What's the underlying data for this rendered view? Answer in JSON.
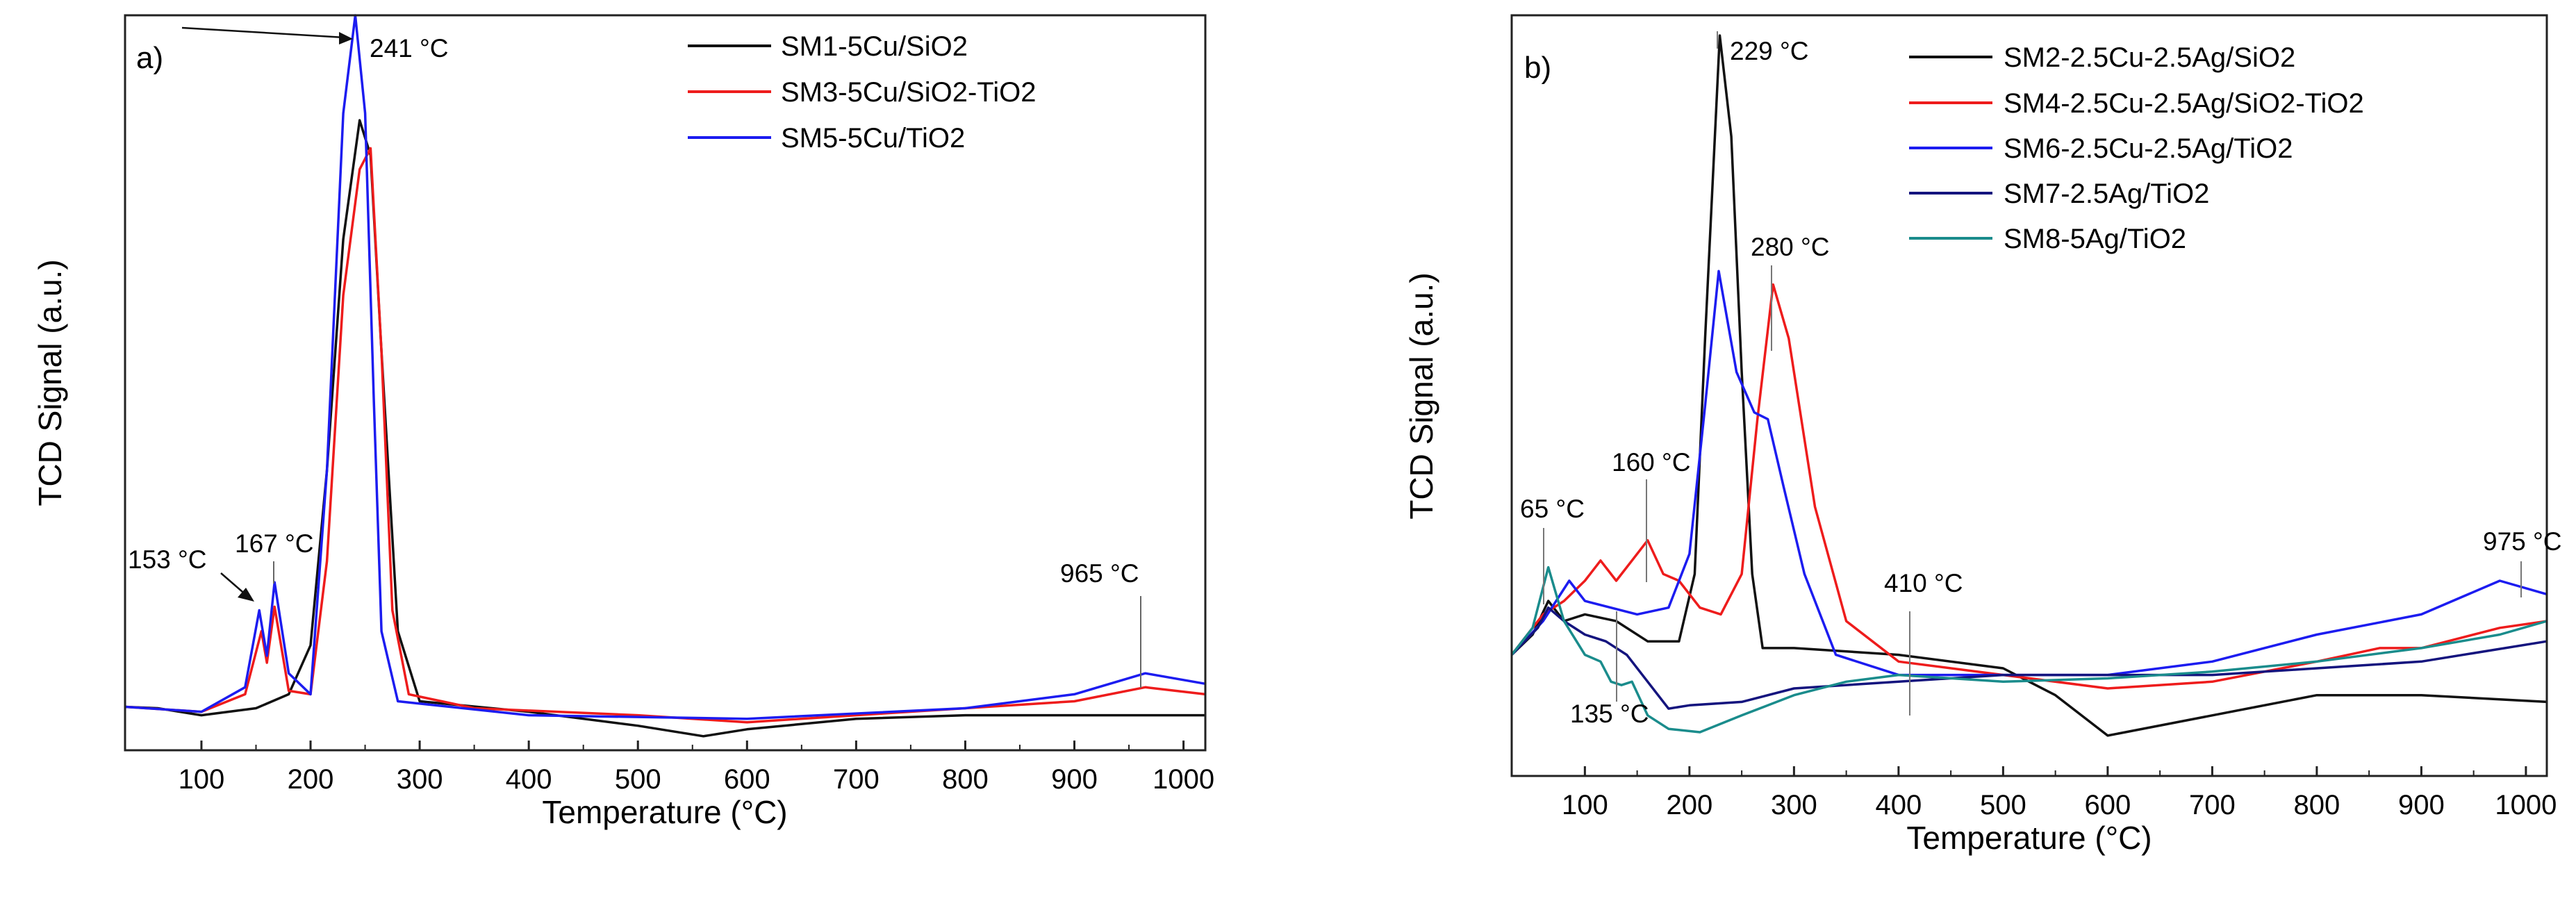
{
  "colors": {
    "black": "#111111",
    "red": "#ee1c1c",
    "blue": "#1c1cf0",
    "navy": "#14147e",
    "teal": "#1a8c8c"
  },
  "chart_data": [
    {
      "type": "line",
      "panel_label": "a)",
      "xlabel": "Temperature (°C)",
      "ylabel": "TCD Signal (a.u.)",
      "xlim": [
        30,
        1020
      ],
      "ylim": [
        -0.5,
        10
      ],
      "x_ticks": [
        100,
        200,
        300,
        400,
        500,
        600,
        700,
        800,
        900,
        1000
      ],
      "x_tick_labels": [
        "100",
        "200",
        "300",
        "400",
        "500",
        "600",
        "700",
        "800",
        "900",
        "1000"
      ],
      "legend_position": "top-right",
      "series": [
        {
          "name": "SM1-5Cu/SiO2",
          "color": "#111111",
          "points": [
            [
              30,
              0.12
            ],
            [
              60,
              0.1
            ],
            [
              100,
              0.0
            ],
            [
              150,
              0.1
            ],
            [
              180,
              0.3
            ],
            [
              200,
              1.0
            ],
            [
              215,
              3.5
            ],
            [
              230,
              6.8
            ],
            [
              245,
              8.5
            ],
            [
              255,
              8.0
            ],
            [
              265,
              5.2
            ],
            [
              280,
              1.2
            ],
            [
              300,
              0.2
            ],
            [
              400,
              0.05
            ],
            [
              500,
              -0.15
            ],
            [
              560,
              -0.3
            ],
            [
              600,
              -0.2
            ],
            [
              700,
              -0.05
            ],
            [
              800,
              0.0
            ],
            [
              900,
              0.0
            ],
            [
              1020,
              0.0
            ]
          ]
        },
        {
          "name": "SM3-5Cu/SiO2-TiO2",
          "color": "#ee1c1c",
          "points": [
            [
              30,
              0.12
            ],
            [
              100,
              0.05
            ],
            [
              140,
              0.3
            ],
            [
              155,
              1.2
            ],
            [
              160,
              0.75
            ],
            [
              167,
              1.55
            ],
            [
              180,
              0.35
            ],
            [
              200,
              0.3
            ],
            [
              215,
              2.2
            ],
            [
              230,
              6.0
            ],
            [
              245,
              7.8
            ],
            [
              255,
              8.1
            ],
            [
              265,
              5.2
            ],
            [
              275,
              1.5
            ],
            [
              290,
              0.3
            ],
            [
              350,
              0.1
            ],
            [
              500,
              0.0
            ],
            [
              600,
              -0.1
            ],
            [
              700,
              0.0
            ],
            [
              800,
              0.1
            ],
            [
              900,
              0.2
            ],
            [
              965,
              0.4
            ],
            [
              1020,
              0.3
            ]
          ]
        },
        {
          "name": "SM5-5Cu/TiO2",
          "color": "#1c1cf0",
          "points": [
            [
              30,
              0.12
            ],
            [
              100,
              0.05
            ],
            [
              140,
              0.4
            ],
            [
              153,
              1.5
            ],
            [
              160,
              0.85
            ],
            [
              167,
              1.9
            ],
            [
              180,
              0.6
            ],
            [
              200,
              0.3
            ],
            [
              215,
              3.5
            ],
            [
              230,
              8.6
            ],
            [
              241,
              10.0
            ],
            [
              250,
              8.6
            ],
            [
              258,
              4.5
            ],
            [
              265,
              1.2
            ],
            [
              280,
              0.2
            ],
            [
              400,
              0.0
            ],
            [
              600,
              -0.05
            ],
            [
              800,
              0.1
            ],
            [
              900,
              0.3
            ],
            [
              965,
              0.6
            ],
            [
              1020,
              0.45
            ]
          ]
        }
      ],
      "annotations": [
        {
          "text": "241 °C",
          "x": 241,
          "y": 10.0
        },
        {
          "text": "153 °C",
          "x": 153,
          "y": 1.5
        },
        {
          "text": "167 °C",
          "x": 167,
          "y": 1.9
        },
        {
          "text": "965 °C",
          "x": 965,
          "y": 0.6
        }
      ]
    },
    {
      "type": "line",
      "panel_label": "b)",
      "xlabel": "Temperature (°C)",
      "ylabel": "TCD Signal (a.u.)",
      "xlim": [
        30,
        1020
      ],
      "ylim": [
        -1.5,
        9.8
      ],
      "x_ticks": [
        100,
        200,
        300,
        400,
        500,
        600,
        700,
        800,
        900,
        1000
      ],
      "x_tick_labels": [
        "100",
        "200",
        "300",
        "400",
        "500",
        "600",
        "700",
        "800",
        "900",
        "1000"
      ],
      "legend_position": "top-right",
      "series": [
        {
          "name": "SM2-2.5Cu-2.5Ag/SiO2",
          "color": "#111111",
          "points": [
            [
              30,
              0.3
            ],
            [
              50,
              0.6
            ],
            [
              65,
              1.1
            ],
            [
              80,
              0.8
            ],
            [
              100,
              0.9
            ],
            [
              130,
              0.8
            ],
            [
              160,
              0.5
            ],
            [
              190,
              0.5
            ],
            [
              205,
              1.5
            ],
            [
              215,
              5.0
            ],
            [
              229,
              9.5
            ],
            [
              240,
              8.0
            ],
            [
              250,
              4.5
            ],
            [
              260,
              1.5
            ],
            [
              270,
              0.4
            ],
            [
              300,
              0.4
            ],
            [
              400,
              0.3
            ],
            [
              500,
              0.1
            ],
            [
              550,
              -0.3
            ],
            [
              600,
              -0.9
            ],
            [
              700,
              -0.6
            ],
            [
              800,
              -0.3
            ],
            [
              900,
              -0.3
            ],
            [
              1020,
              -0.4
            ]
          ]
        },
        {
          "name": "SM4-2.5Cu-2.5Ag/SiO2-TiO2",
          "color": "#ee1c1c",
          "points": [
            [
              30,
              0.3
            ],
            [
              60,
              0.9
            ],
            [
              80,
              1.1
            ],
            [
              100,
              1.4
            ],
            [
              115,
              1.7
            ],
            [
              130,
              1.4
            ],
            [
              145,
              1.7
            ],
            [
              160,
              2.0
            ],
            [
              175,
              1.5
            ],
            [
              190,
              1.4
            ],
            [
              210,
              1.0
            ],
            [
              230,
              0.9
            ],
            [
              250,
              1.5
            ],
            [
              265,
              3.8
            ],
            [
              280,
              5.8
            ],
            [
              295,
              5.0
            ],
            [
              320,
              2.5
            ],
            [
              350,
              0.8
            ],
            [
              400,
              0.2
            ],
            [
              500,
              0.0
            ],
            [
              600,
              -0.2
            ],
            [
              700,
              -0.1
            ],
            [
              800,
              0.2
            ],
            [
              860,
              0.4
            ],
            [
              900,
              0.4
            ],
            [
              975,
              0.7
            ],
            [
              1020,
              0.8
            ]
          ]
        },
        {
          "name": "SM6-2.5Cu-2.5Ag/TiO2",
          "color": "#1c1cf0",
          "points": [
            [
              30,
              0.3
            ],
            [
              60,
              0.8
            ],
            [
              85,
              1.4
            ],
            [
              100,
              1.1
            ],
            [
              150,
              0.9
            ],
            [
              180,
              1.0
            ],
            [
              200,
              1.8
            ],
            [
              215,
              4.0
            ],
            [
              228,
              6.0
            ],
            [
              245,
              4.5
            ],
            [
              262,
              3.9
            ],
            [
              275,
              3.8
            ],
            [
              290,
              2.8
            ],
            [
              310,
              1.5
            ],
            [
              340,
              0.3
            ],
            [
              400,
              0.0
            ],
            [
              500,
              0.0
            ],
            [
              600,
              0.0
            ],
            [
              700,
              0.2
            ],
            [
              800,
              0.6
            ],
            [
              900,
              0.9
            ],
            [
              975,
              1.4
            ],
            [
              1020,
              1.2
            ]
          ]
        },
        {
          "name": "SM7-2.5Ag/TiO2",
          "color": "#14147e",
          "points": [
            [
              30,
              0.3
            ],
            [
              55,
              0.7
            ],
            [
              65,
              1.0
            ],
            [
              80,
              0.8
            ],
            [
              100,
              0.6
            ],
            [
              120,
              0.5
            ],
            [
              140,
              0.3
            ],
            [
              160,
              -0.1
            ],
            [
              180,
              -0.5
            ],
            [
              200,
              -0.45
            ],
            [
              250,
              -0.4
            ],
            [
              300,
              -0.2
            ],
            [
              400,
              -0.1
            ],
            [
              500,
              0.0
            ],
            [
              600,
              0.0
            ],
            [
              700,
              0.0
            ],
            [
              800,
              0.1
            ],
            [
              900,
              0.2
            ],
            [
              1020,
              0.5
            ]
          ]
        },
        {
          "name": "SM8-5Ag/TiO2",
          "color": "#1a8c8c",
          "points": [
            [
              30,
              0.3
            ],
            [
              50,
              0.7
            ],
            [
              65,
              1.6
            ],
            [
              80,
              0.8
            ],
            [
              100,
              0.3
            ],
            [
              115,
              0.2
            ],
            [
              125,
              -0.1
            ],
            [
              135,
              -0.15
            ],
            [
              145,
              -0.1
            ],
            [
              160,
              -0.6
            ],
            [
              180,
              -0.8
            ],
            [
              210,
              -0.85
            ],
            [
              250,
              -0.6
            ],
            [
              300,
              -0.3
            ],
            [
              350,
              -0.1
            ],
            [
              400,
              0.0
            ],
            [
              500,
              -0.1
            ],
            [
              600,
              -0.05
            ],
            [
              700,
              0.05
            ],
            [
              800,
              0.2
            ],
            [
              900,
              0.4
            ],
            [
              975,
              0.6
            ],
            [
              1020,
              0.8
            ]
          ]
        }
      ],
      "annotations": [
        {
          "text": "229 °C",
          "x": 229,
          "y": 9.5
        },
        {
          "text": "280 °C",
          "x": 280,
          "y": 5.8
        },
        {
          "text": "160 °C",
          "x": 160,
          "y": 2.0
        },
        {
          "text": "65 °C",
          "x": 65,
          "y": 1.6
        },
        {
          "text": "135 °C",
          "x": 135,
          "y": -0.15
        },
        {
          "text": "410 °C",
          "x": 410,
          "y": 0.0
        },
        {
          "text": "975 °C",
          "x": 975,
          "y": 1.4
        }
      ]
    }
  ]
}
